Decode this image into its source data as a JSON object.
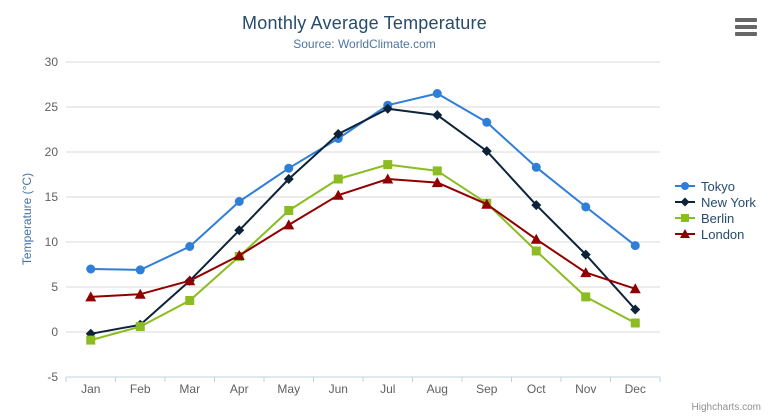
{
  "chart": {
    "title": "Monthly Average Temperature",
    "subtitle": "Source: WorldClimate.com",
    "credits": "Highcharts.com"
  },
  "icons": {
    "export_menu": "hamburger-icon"
  },
  "colors": {
    "title": "#274B6D",
    "subtitle": "#4D759E",
    "axis_title": "#4572A7",
    "axis_labels": "#606060",
    "legend_text": "#274B6D",
    "grid": "#D8D8D8",
    "axis_line": "#C0D0E0",
    "credits": "#909090"
  },
  "chart_data": {
    "type": "line",
    "title": "Monthly Average Temperature",
    "subtitle": "Source: WorldClimate.com",
    "xlabel": "",
    "ylabel": "Temperature (°C)",
    "categories": [
      "Jan",
      "Feb",
      "Mar",
      "Apr",
      "May",
      "Jun",
      "Jul",
      "Aug",
      "Sep",
      "Oct",
      "Nov",
      "Dec"
    ],
    "ylim": [
      -5,
      30
    ],
    "yticks": [
      -5,
      0,
      5,
      10,
      15,
      20,
      25,
      30
    ],
    "grid": "horizontal",
    "legend_position": "right",
    "series": [
      {
        "name": "Tokyo",
        "color": "#2F7ED8",
        "marker": "circle",
        "values": [
          7.0,
          6.9,
          9.5,
          14.5,
          18.2,
          21.5,
          25.2,
          26.5,
          23.3,
          18.3,
          13.9,
          9.6
        ]
      },
      {
        "name": "New York",
        "color": "#0D233A",
        "marker": "diamond",
        "values": [
          -0.2,
          0.8,
          5.7,
          11.3,
          17.0,
          22.0,
          24.8,
          24.1,
          20.1,
          14.1,
          8.6,
          2.5
        ]
      },
      {
        "name": "Berlin",
        "color": "#8BBC21",
        "marker": "square",
        "values": [
          -0.9,
          0.6,
          3.5,
          8.4,
          13.5,
          17.0,
          18.6,
          17.9,
          14.3,
          9.0,
          3.9,
          1.0
        ]
      },
      {
        "name": "London",
        "color": "#910000",
        "marker": "triangle",
        "values": [
          3.9,
          4.2,
          5.7,
          8.5,
          11.9,
          15.2,
          17.0,
          16.6,
          14.2,
          10.3,
          6.6,
          4.8
        ]
      }
    ]
  }
}
